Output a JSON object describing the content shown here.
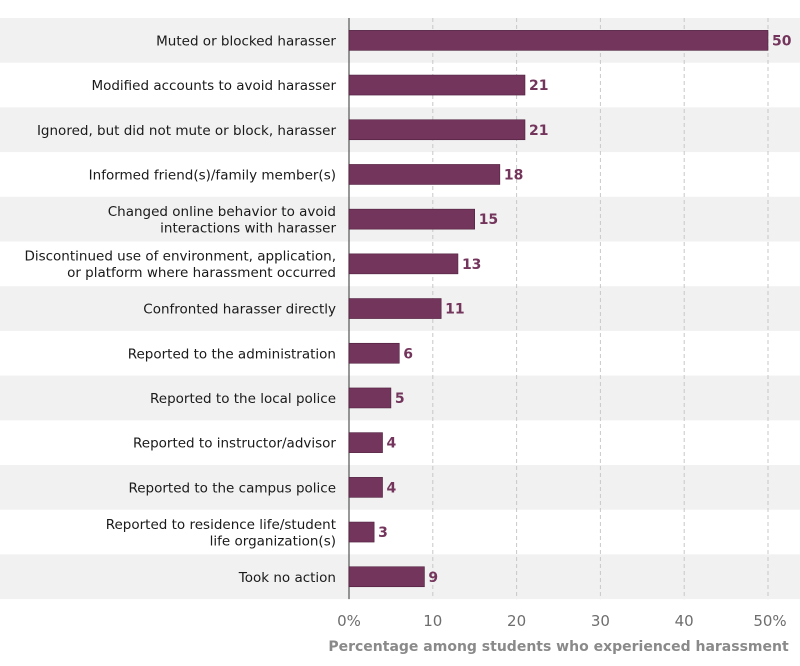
{
  "chart_data": {
    "type": "bar",
    "orientation": "horizontal",
    "title": "",
    "xlabel": "Percentage among students who experienced harassment",
    "ylabel": "",
    "xlim": [
      0,
      50
    ],
    "x_ticks": [
      0,
      10,
      20,
      30,
      40,
      50
    ],
    "x_tick_labels": [
      "0%",
      "10",
      "20",
      "30",
      "40",
      "50%"
    ],
    "grid": "vertical-dashed",
    "alternating_row_bands": true,
    "bar_color": "#74355c",
    "categories": [
      [
        "Muted or blocked harasser"
      ],
      [
        "Modified accounts to avoid harasser"
      ],
      [
        "Ignored, but did not mute or block, harasser"
      ],
      [
        "Informed friend(s)/family member(s)"
      ],
      [
        "Changed online behavior to avoid",
        "interactions with harasser"
      ],
      [
        "Discontinued use of environment, application,",
        "or platform where harassment occurred"
      ],
      [
        "Confronted harasser directly"
      ],
      [
        "Reported to the administration"
      ],
      [
        "Reported to the local police"
      ],
      [
        "Reported to instructor/advisor"
      ],
      [
        "Reported to the campus police"
      ],
      [
        "Reported to residence life/student",
        "life organization(s)"
      ],
      [
        "Took no action"
      ]
    ],
    "values": [
      50,
      21,
      21,
      18,
      15,
      13,
      11,
      6,
      5,
      4,
      4,
      3,
      9
    ]
  }
}
